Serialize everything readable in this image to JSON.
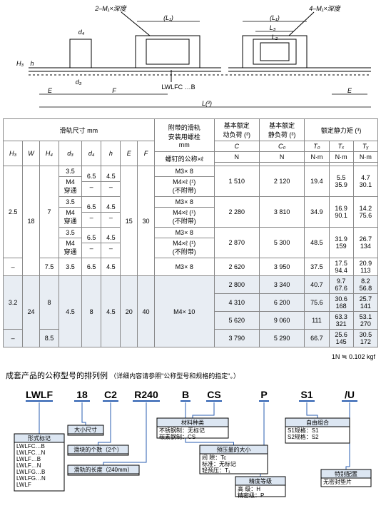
{
  "diagram": {
    "labels": {
      "dim1": "2–M₁×深度",
      "dim2": "4–M₁×深度",
      "L1": "(L₁)",
      "L3": "L₃",
      "L2": "L₂",
      "d4": "d₄",
      "d3": "d₃",
      "H3": "H₃",
      "h": "h",
      "E": "E",
      "F": "F",
      "part": "LWLFC …B",
      "Loverall": "L(²)"
    }
  },
  "table": {
    "hdr": {
      "rail": "滑轨尺寸   mm",
      "screw": "附带的滑轨\n安装用螺栓\nmm",
      "dyn": "基本额定\n动负荷 (³)",
      "stat": "基本额定\n静负荷 (³)",
      "moment": "额定静力矩 (³)",
      "screw2": "螺钉的公称×ℓ",
      "C": "C",
      "C0": "C₀",
      "T0": "T₀",
      "TX": "Tₓ",
      "TY": "Tᵧ",
      "N": "N",
      "Nm": "N·m",
      "H3": "H₃",
      "W": "W",
      "H4": "H₄",
      "d3": "d₃",
      "d4": "d₄",
      "h": "h",
      "E": "E",
      "F": "F"
    },
    "rows": [
      {
        "H3": "2.5",
        "W": "18",
        "H4": "7",
        "d3": "3.5",
        "d3b": "M4\n穿通",
        "d4": "6.5",
        "d4b": "–",
        "h": "4.5",
        "hb": "–",
        "E": "15",
        "F": "30",
        "sc": "M3× 8",
        "scb": "M4×ℓ (¹)\n(不附带)",
        "C": "1 510",
        "C0": "2 120",
        "T0": "19.4",
        "TX": "5.5\n35.9",
        "TY": "4.7\n30.1"
      },
      {
        "d3": "3.5",
        "d3b": "M4\n穿通",
        "d4": "6.5",
        "d4b": "–",
        "h": "4.5",
        "hb": "–",
        "sc": "M3× 8",
        "scb": "M4×ℓ (¹)\n(不附带)",
        "C": "2 280",
        "C0": "3 810",
        "T0": "34.9",
        "TX": "16.9\n90.1",
        "TY": "14.2\n75.6"
      },
      {
        "d3": "3.5",
        "d3b": "M4\n穿通",
        "d4": "6.5",
        "d4b": "–",
        "h": "4.5",
        "hb": "–",
        "sc": "M3× 8",
        "scb": "M4×ℓ (¹)\n(不附带)",
        "C": "2 870",
        "C0": "5 300",
        "T0": "48.5",
        "TX": "31.9\n159",
        "TY": "26.7\n134"
      },
      {
        "H3": "–",
        "H4": "7.5",
        "d3": "3.5",
        "d4": "6.5",
        "h": "4.5",
        "sc": "M3× 8",
        "C": "2 620",
        "C0": "3 950",
        "T0": "37.5",
        "TX": "17.5\n94.4",
        "TY": "20.9\n113"
      },
      {
        "shade": true,
        "H3": "3.2",
        "W": "24",
        "H4": "8",
        "d3": "4.5",
        "d4": "8",
        "h": "4.5",
        "E": "20",
        "F": "40",
        "sc": "M4× 10",
        "C": "2 800",
        "C0": "3 340",
        "T0": "40.7",
        "TX": "9.7\n67.6",
        "TY": "8.2\n56.8"
      },
      {
        "shade": true,
        "C": "4 310",
        "C0": "6 200",
        "T0": "75.6",
        "TX": "30.6\n168",
        "TY": "25.7\n141"
      },
      {
        "shade": true,
        "C": "5 620",
        "C0": "9 060",
        "T0": "111",
        "TX": "63.3\n321",
        "TY": "53.1\n270"
      },
      {
        "shade": true,
        "H3": "–",
        "H4": "8.5",
        "C": "3 790",
        "C0": "5 290",
        "T0": "66.7",
        "TX": "25.6\n145",
        "TY": "30.5\n172"
      }
    ]
  },
  "note": "1N ≒ 0.102 kgf",
  "part": {
    "title": "成套产品的公称型号的排列例",
    "sub": "（详细内容请参照\"公称型号和规格的指定\"。）",
    "codes": [
      "LWLF",
      "18",
      "C2",
      "R240",
      "B",
      "CS",
      "P",
      "S1",
      "/U"
    ],
    "boxes": {
      "form": {
        "title": "形式标记",
        "items": [
          "LWLFC…B",
          "LWLFC…N",
          "LWLF…B",
          "LWLF…N",
          "LWLFG…B",
          "LWLFG…N",
          "LWLF"
        ]
      },
      "size": {
        "title": "大小尺寸"
      },
      "qty": {
        "title": "滑块的个数（2个）"
      },
      "len": {
        "title": "滑轨的长度（240mm）"
      },
      "mat": {
        "title": "材料种类",
        "items": [
          "不锈钢制：无标记",
          "碳素钢制：CS"
        ]
      },
      "preload": {
        "title": "预压量的大小",
        "items": [
          "间   隙：Tc",
          "标准：无标记",
          "轻预压：T₁"
        ]
      },
      "grade": {
        "title": "精度等级",
        "items": [
          "高    级：H",
          "精密级：P"
        ]
      },
      "combo": {
        "title": "自由组合",
        "items": [
          "S1规格：S1",
          "S2规格：S2"
        ]
      },
      "special": {
        "title": "特别配置",
        "items": [
          "无密封垫片"
        ]
      }
    }
  }
}
